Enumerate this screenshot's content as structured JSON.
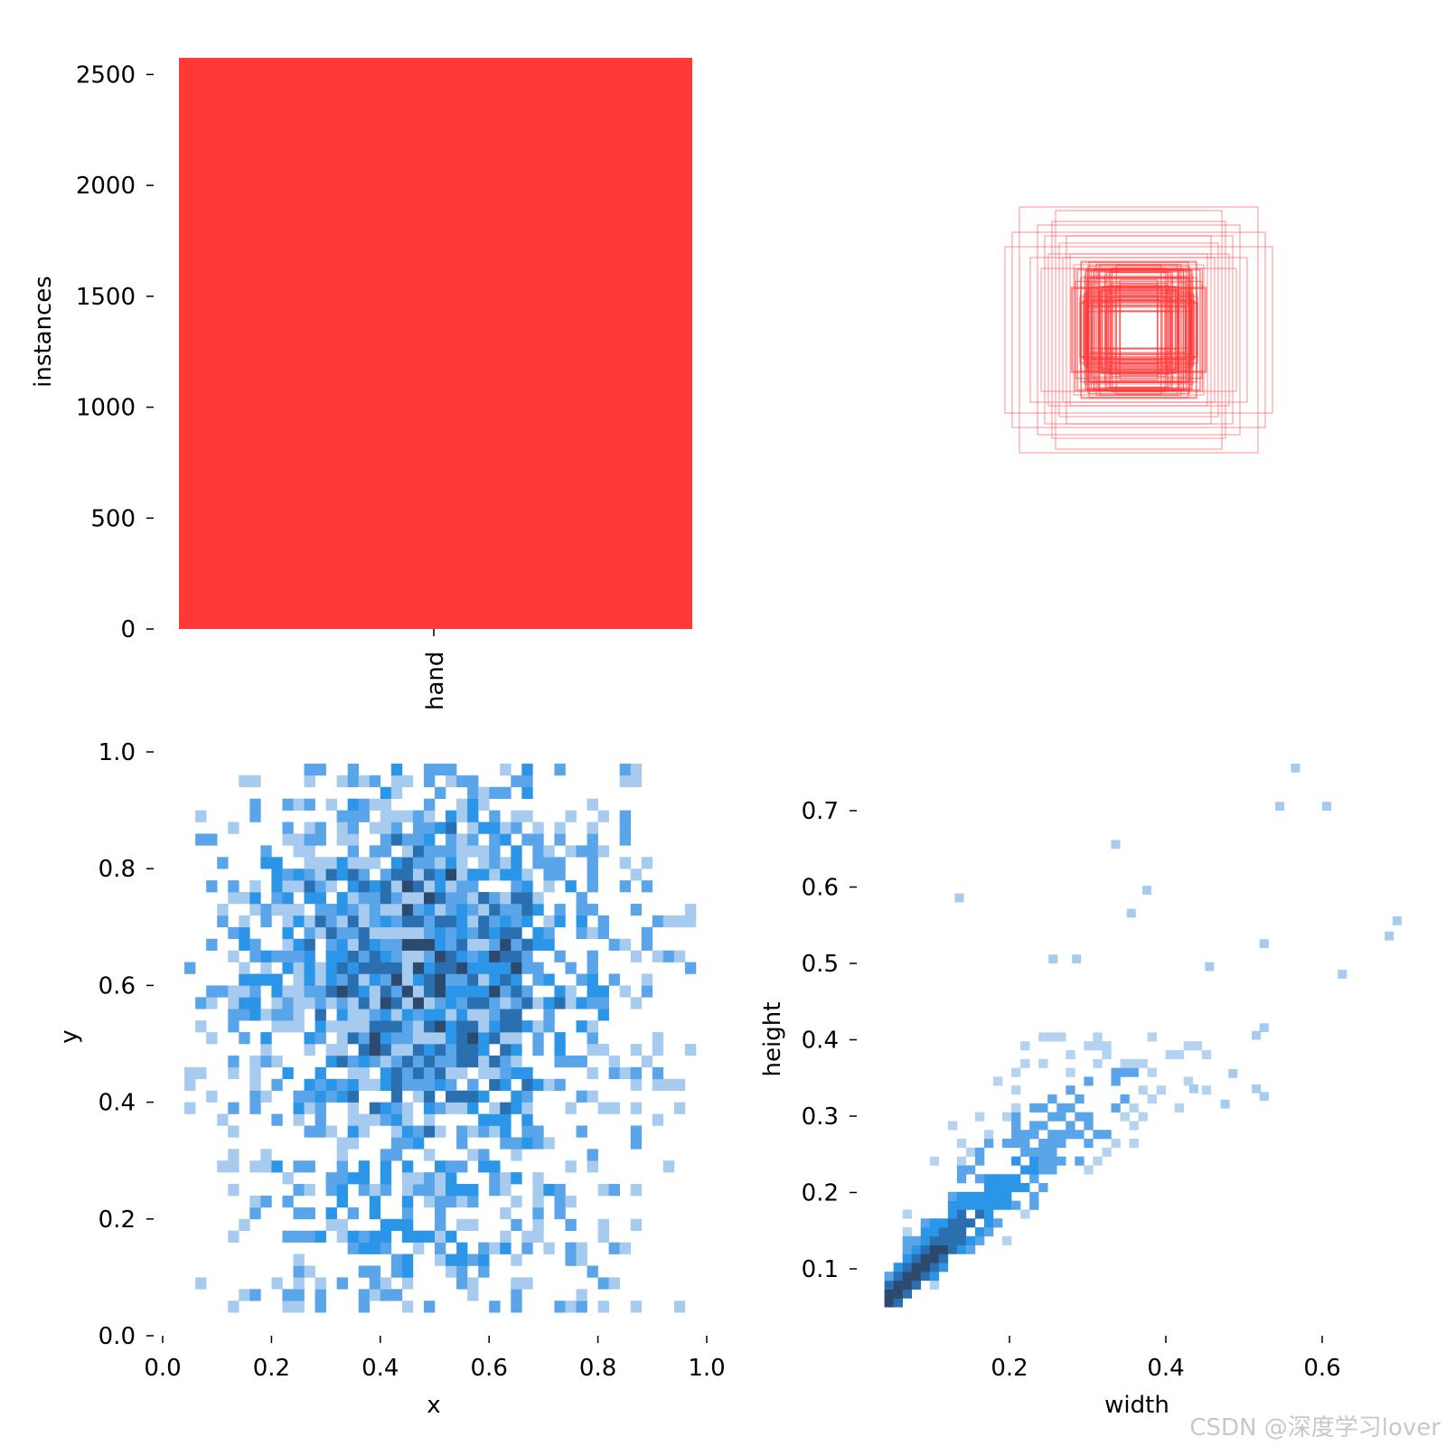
{
  "watermark": "CSDN @深度学习lover",
  "colors": {
    "bar": "#ff3838",
    "box": "#ff3838",
    "hist_light": "#a6cbee",
    "hist_mid": "#5aa5ea",
    "hist_base": "#2b95e8",
    "hist_dark": "#2a6fb0",
    "hist_darkest": "#2c4a6e"
  },
  "chart_data": [
    {
      "type": "bar",
      "categories": [
        "hand"
      ],
      "values": [
        2575
      ],
      "xlabel": "",
      "ylabel": "instances",
      "yticks": [
        "0",
        "500",
        "1000",
        "1500",
        "2000",
        "2500"
      ],
      "ylim": [
        0,
        2575
      ],
      "grid": false
    },
    {
      "type": "other",
      "description_kind": "label boxes",
      "boxes": [
        {
          "w": 0.37,
          "h": 0.23
        },
        {
          "w": 0.33,
          "h": 0.34
        },
        {
          "w": 0.28,
          "h": 0.29
        },
        {
          "w": 0.26,
          "h": 0.26
        },
        {
          "w": 0.25,
          "h": 0.21
        },
        {
          "w": 0.22,
          "h": 0.24
        },
        {
          "w": 0.21,
          "h": 0.2
        },
        {
          "w": 0.19,
          "h": 0.21
        },
        {
          "w": 0.18,
          "h": 0.18
        },
        {
          "w": 0.17,
          "h": 0.17
        },
        {
          "w": 0.16,
          "h": 0.19
        },
        {
          "w": 0.15,
          "h": 0.15
        },
        {
          "w": 0.14,
          "h": 0.16
        },
        {
          "w": 0.13,
          "h": 0.13
        },
        {
          "w": 0.12,
          "h": 0.14
        },
        {
          "w": 0.11,
          "h": 0.11
        },
        {
          "w": 0.1,
          "h": 0.12
        },
        {
          "w": 0.09,
          "h": 0.1
        },
        {
          "w": 0.3,
          "h": 0.2
        },
        {
          "w": 0.24,
          "h": 0.3
        },
        {
          "w": 0.2,
          "h": 0.26
        },
        {
          "w": 0.27,
          "h": 0.17
        },
        {
          "w": 0.35,
          "h": 0.27
        },
        {
          "w": 0.23,
          "h": 0.33
        }
      ]
    },
    {
      "type": "heatmap",
      "xlabel": "x",
      "ylabel": "y",
      "xlim": [
        0,
        1
      ],
      "ylim": [
        0,
        1
      ],
      "xticks": [
        "0.0",
        "0.2",
        "0.4",
        "0.6",
        "0.8",
        "1.0"
      ],
      "yticks": [
        "0.0",
        "0.2",
        "0.4",
        "0.6",
        "0.8",
        "1.0"
      ],
      "distribution": "2D histogram of box centers, dense in x 0.3–0.7, y 0.4–0.85, sparse toward y 0"
    },
    {
      "type": "heatmap",
      "xlabel": "width",
      "ylabel": "height",
      "xlim": [
        0,
        0.7
      ],
      "ylim": [
        0.05,
        0.77
      ],
      "xticks": [
        "0.2",
        "0.4",
        "0.6"
      ],
      "yticks": [
        "0.1",
        "0.2",
        "0.3",
        "0.4",
        "0.5",
        "0.6",
        "0.7"
      ],
      "distribution": "2D histogram of box sizes, concentrated near width 0.08, height 0.1, spreading diagonally to width 0.4, height 0.35",
      "outliers": [
        {
          "x": 0.56,
          "y": 0.75
        },
        {
          "x": 0.54,
          "y": 0.7
        },
        {
          "x": 0.6,
          "y": 0.7
        },
        {
          "x": 0.33,
          "y": 0.65
        },
        {
          "x": 0.13,
          "y": 0.58
        },
        {
          "x": 0.37,
          "y": 0.59
        },
        {
          "x": 0.69,
          "y": 0.55
        },
        {
          "x": 0.68,
          "y": 0.53
        },
        {
          "x": 0.52,
          "y": 0.52
        },
        {
          "x": 0.35,
          "y": 0.56
        },
        {
          "x": 0.62,
          "y": 0.48
        },
        {
          "x": 0.25,
          "y": 0.5
        },
        {
          "x": 0.45,
          "y": 0.49
        },
        {
          "x": 0.28,
          "y": 0.5
        },
        {
          "x": 0.52,
          "y": 0.41
        },
        {
          "x": 0.51,
          "y": 0.4
        },
        {
          "x": 0.51,
          "y": 0.33
        },
        {
          "x": 0.52,
          "y": 0.32
        },
        {
          "x": 0.48,
          "y": 0.35
        },
        {
          "x": 0.43,
          "y": 0.33
        },
        {
          "x": 0.47,
          "y": 0.31
        }
      ]
    }
  ]
}
